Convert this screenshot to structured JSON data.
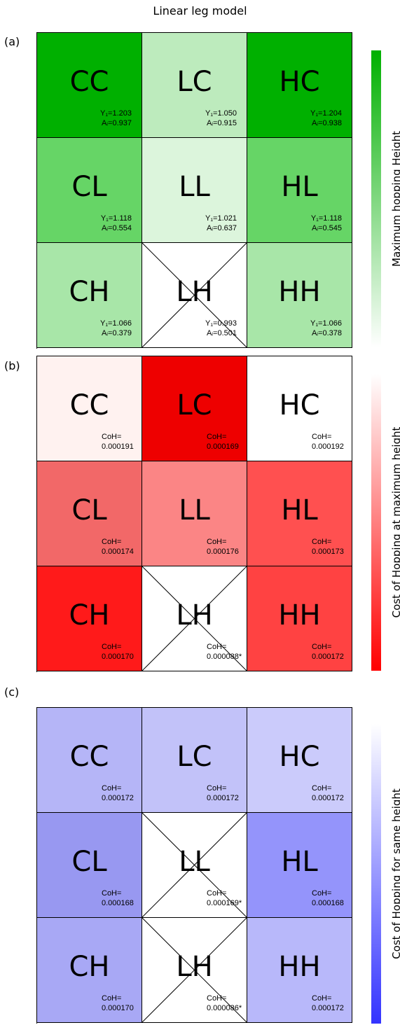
{
  "title": "Linear leg model",
  "panels": [
    {
      "label": "(a)",
      "colorbar_label": "Maximum hopping Height",
      "cells": [
        {
          "code": "CC",
          "l1": "Y₁=1.203",
          "l2": "Aᵢ=0.937",
          "color": "#00b000",
          "crossed": false
        },
        {
          "code": "LC",
          "l1": "Y₁=1.050",
          "l2": "Aᵢ=0.915",
          "color": "#bdebbd",
          "crossed": false
        },
        {
          "code": "HC",
          "l1": "Y₁=1.204",
          "l2": "Aᵢ=0.938",
          "color": "#00b000",
          "crossed": false
        },
        {
          "code": "CL",
          "l1": "Y₁=1.118",
          "l2": "Aᵢ=0.554",
          "color": "#66d566",
          "crossed": false
        },
        {
          "code": "LL",
          "l1": "Y₁=1.021",
          "l2": "Aᵢ=0.637",
          "color": "#dcf5dc",
          "crossed": false
        },
        {
          "code": "HL",
          "l1": "Y₁=1.118",
          "l2": "Aᵢ=0.545",
          "color": "#66d566",
          "crossed": false
        },
        {
          "code": "CH",
          "l1": "Y₁=1.066",
          "l2": "Aᵢ=0.379",
          "color": "#a8e6a8",
          "crossed": false
        },
        {
          "code": "LH",
          "l1": "Y₁=0.993",
          "l2": "Aᵢ=0.501",
          "color": "#ffffff",
          "crossed": true
        },
        {
          "code": "HH",
          "l1": "Y₁=1.066",
          "l2": "Aᵢ=0.378",
          "color": "#a8e6a8",
          "crossed": false
        }
      ]
    },
    {
      "label": "(b)",
      "colorbar_label": "Cost of Hopping at maximum height",
      "cells": [
        {
          "code": "CC",
          "l1": "CoH=",
          "l2": "0.000191",
          "color": "#fff2f0",
          "crossed": false
        },
        {
          "code": "LC",
          "l1": "CoH=",
          "l2": "0.000169",
          "color": "#ee0000",
          "crossed": false
        },
        {
          "code": "HC",
          "l1": "CoH=",
          "l2": "0.000192",
          "color": "#ffffff",
          "crossed": false
        },
        {
          "code": "CL",
          "l1": "CoH=",
          "l2": "0.000174",
          "color": "#f26868",
          "crossed": false
        },
        {
          "code": "LL",
          "l1": "CoH=",
          "l2": "0.000176",
          "color": "#fb8585",
          "crossed": false
        },
        {
          "code": "HL",
          "l1": "CoH=",
          "l2": "0.000173",
          "color": "#ff5050",
          "crossed": false
        },
        {
          "code": "CH",
          "l1": "CoH=",
          "l2": "0.000170",
          "color": "#ff1a1a",
          "crossed": false
        },
        {
          "code": "LH",
          "l1": "CoH=",
          "l2": "0.000088*",
          "color": "#ffffff",
          "crossed": true
        },
        {
          "code": "HH",
          "l1": "CoH=",
          "l2": "0.000172",
          "color": "#ff4242",
          "crossed": false
        }
      ]
    },
    {
      "label": "(c)",
      "colorbar_label": "Cost of Hopping for same height",
      "cells": [
        {
          "code": "CC",
          "l1": "CoH=",
          "l2": "0.000172",
          "color": "#b5b5f7",
          "crossed": false
        },
        {
          "code": "LC",
          "l1": "CoH=",
          "l2": "0.000172",
          "color": "#c2c2f9",
          "crossed": false
        },
        {
          "code": "HC",
          "l1": "CoH=",
          "l2": "0.000172",
          "color": "#cbcbfb",
          "crossed": false
        },
        {
          "code": "CL",
          "l1": "CoH=",
          "l2": "0.000168",
          "color": "#9898f1",
          "crossed": false
        },
        {
          "code": "LL",
          "l1": "CoH=",
          "l2": "0.000169*",
          "color": "#ffffff",
          "crossed": true
        },
        {
          "code": "HL",
          "l1": "CoH=",
          "l2": "0.000168",
          "color": "#9494fb",
          "crossed": false
        },
        {
          "code": "CH",
          "l1": "CoH=",
          "l2": "0.000170",
          "color": "#a8a8f5",
          "crossed": false
        },
        {
          "code": "LH",
          "l1": "CoH=",
          "l2": "0.000086*",
          "color": "#ffffff",
          "crossed": true
        },
        {
          "code": "HH",
          "l1": "CoH=",
          "l2": "0.000172",
          "color": "#b8b8fa",
          "crossed": false
        }
      ]
    }
  ],
  "colorbar_colors": [
    "#00b000",
    "#ff0000",
    "#3333ff"
  ]
}
